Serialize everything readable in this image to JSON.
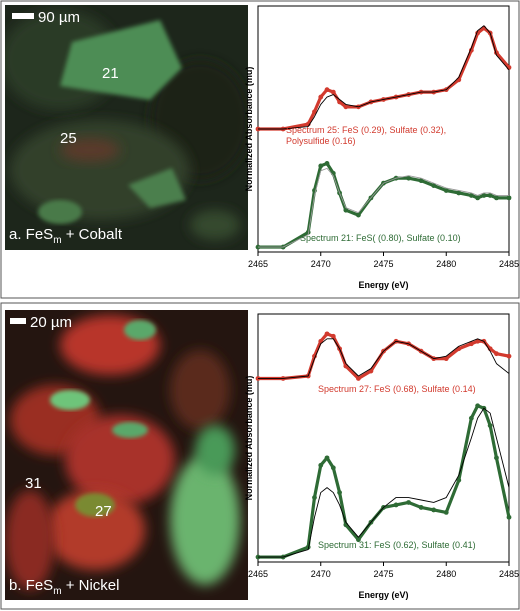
{
  "panels": [
    {
      "scale_bar": "90 µm",
      "labels": [
        "21",
        "25"
      ],
      "caption": {
        "prefix": "a. FeS",
        "subscript": "m",
        "suffix": " + Cobalt"
      }
    },
    {
      "scale_bar": "20 µm",
      "labels": [
        "31",
        "27"
      ],
      "caption": {
        "prefix": "b. FeS",
        "subscript": "m",
        "suffix": " + Nickel"
      }
    }
  ],
  "chart_data": [
    {
      "type": "line",
      "xlabel": "Energy (eV)",
      "ylabel": "Normalized Absorbance (mu)",
      "x": [
        2465,
        2467,
        2469,
        2469.5,
        2470,
        2470.5,
        2471,
        2471.5,
        2472,
        2473,
        2474,
        2475,
        2476,
        2477,
        2478,
        2479,
        2480,
        2481,
        2482,
        2482.5,
        2483,
        2483.5,
        2484,
        2485
      ],
      "xlim": [
        2465,
        2485
      ],
      "xticks": [
        2465,
        2470,
        2475,
        2480,
        2485
      ],
      "ylim": [
        0,
        10
      ],
      "series": [
        {
          "name": "Spectrum 25: FeS (0.29), Sulfate (0.32), Polysulfide (0.16)",
          "color": "#d23a2e",
          "mode": "markers",
          "values": [
            5.0,
            5.0,
            5.2,
            5.7,
            6.3,
            6.6,
            6.5,
            6.1,
            5.9,
            5.9,
            6.1,
            6.2,
            6.3,
            6.4,
            6.5,
            6.5,
            6.6,
            7.0,
            8.2,
            8.9,
            9.1,
            8.9,
            8.1,
            7.5
          ]
        },
        {
          "color": "#000000",
          "mode": "line",
          "values": [
            5.0,
            5.0,
            5.1,
            5.5,
            6.0,
            6.3,
            6.4,
            6.2,
            6.0,
            5.9,
            6.1,
            6.2,
            6.3,
            6.4,
            6.5,
            6.5,
            6.6,
            7.1,
            8.3,
            9.0,
            9.2,
            8.9,
            8.0,
            7.4
          ]
        },
        {
          "name": "Spectrum 21: FeS( (0.80), Sulfate (0.10)",
          "color": "#2e6b35",
          "mode": "markers",
          "values": [
            0.2,
            0.2,
            0.8,
            2.5,
            3.5,
            3.6,
            3.2,
            2.4,
            1.7,
            1.5,
            2.2,
            2.8,
            3.0,
            3.0,
            2.9,
            2.7,
            2.5,
            2.4,
            2.3,
            2.2,
            2.3,
            2.3,
            2.2,
            2.2
          ]
        },
        {
          "color": "#999999",
          "mode": "line",
          "values": [
            0.2,
            0.2,
            0.7,
            2.3,
            3.3,
            3.4,
            3.1,
            2.4,
            1.8,
            1.6,
            2.2,
            2.8,
            3.0,
            3.1,
            3.0,
            2.8,
            2.6,
            2.5,
            2.4,
            2.3,
            2.4,
            2.4,
            2.3,
            2.3
          ]
        }
      ]
    },
    {
      "type": "line",
      "xlabel": "Energy (eV)",
      "ylabel": "Normalized Absorbance (mu)",
      "x": [
        2465,
        2467,
        2469,
        2469.5,
        2470,
        2470.5,
        2471,
        2471.5,
        2472,
        2473,
        2474,
        2475,
        2476,
        2477,
        2478,
        2479,
        2480,
        2481,
        2482,
        2482.5,
        2483,
        2483.5,
        2484,
        2485
      ],
      "xlim": [
        2465,
        2485
      ],
      "xticks": [
        2465,
        2470,
        2475,
        2480,
        2485
      ],
      "ylim": [
        0,
        10
      ],
      "series": [
        {
          "name": "Spectrum 27: FeS (0.68), Sulfate (0.14)",
          "color": "#d23a2e",
          "mode": "markers",
          "values": [
            7.4,
            7.4,
            7.5,
            8.3,
            8.9,
            9.2,
            9.1,
            8.6,
            7.9,
            7.4,
            7.7,
            8.5,
            8.9,
            8.8,
            8.5,
            8.2,
            8.2,
            8.6,
            8.8,
            8.9,
            8.9,
            8.6,
            8.4,
            8.3
          ]
        },
        {
          "color": "#000000",
          "mode": "line",
          "values": [
            7.4,
            7.4,
            7.5,
            8.2,
            8.8,
            9.0,
            9.0,
            8.6,
            8.0,
            7.5,
            7.8,
            8.5,
            8.9,
            8.8,
            8.5,
            8.2,
            8.3,
            8.7,
            8.9,
            9.0,
            8.9,
            8.5,
            8.0,
            7.6
          ]
        },
        {
          "name": "Spectrum 31: FeS (0.62), Sulfate (0.41)",
          "color": "#2e6b35",
          "mode": "markers",
          "values": [
            0.2,
            0.2,
            0.6,
            2.6,
            3.9,
            4.2,
            3.8,
            2.8,
            1.5,
            0.9,
            1.6,
            2.2,
            2.3,
            2.4,
            2.2,
            2.1,
            2.0,
            3.3,
            5.8,
            6.3,
            6.2,
            5.5,
            4.2,
            1.8
          ]
        },
        {
          "color": "#000000",
          "mode": "line",
          "values": [
            0.2,
            0.2,
            0.5,
            1.8,
            2.8,
            3.0,
            2.8,
            2.3,
            1.6,
            1.0,
            1.6,
            2.2,
            2.6,
            2.6,
            2.5,
            2.4,
            2.6,
            3.5,
            5.0,
            5.8,
            6.2,
            6.0,
            5.0,
            3.0
          ]
        }
      ]
    }
  ]
}
